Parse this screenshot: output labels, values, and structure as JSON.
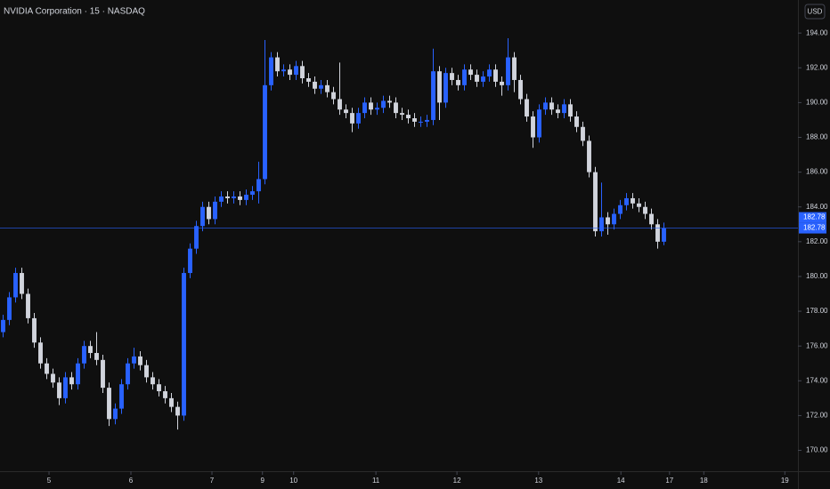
{
  "chart_data": {
    "type": "candlestick",
    "title": "NVIDIA Corporation · 15 · NASDAQ",
    "currency": "USD",
    "up_color": "#2962ff",
    "down_color": "#d1d4dc",
    "open": [
      176.8,
      177.5,
      178.8,
      180.2,
      179.0,
      177.6,
      176.2,
      175.0,
      174.4,
      173.9,
      173.0,
      174.2,
      173.8,
      175.0,
      176.0,
      175.6,
      175.2,
      173.6,
      171.8,
      172.4,
      173.8,
      175.0,
      175.4,
      174.9,
      174.2,
      173.8,
      173.4,
      173.0,
      172.5,
      172.0,
      180.2,
      181.6,
      182.9,
      184.0,
      183.3,
      184.3,
      184.6,
      184.5,
      184.6,
      184.4,
      184.7,
      184.9,
      185.6,
      191.0,
      192.6,
      191.8,
      191.9,
      191.6,
      192.1,
      191.4,
      191.2,
      190.8,
      191.0,
      190.6,
      190.2,
      189.6,
      189.4,
      188.8,
      189.4,
      190.0,
      189.6,
      189.7,
      190.1,
      190.0,
      189.4,
      189.3,
      189.1,
      188.9,
      188.9,
      189.0,
      191.8,
      190.0,
      191.7,
      191.3,
      191.0,
      191.9,
      191.6,
      191.2,
      191.5,
      191.9,
      191.2,
      191.0,
      192.6,
      191.3,
      190.2,
      189.2,
      188.0,
      189.6,
      190.0,
      189.6,
      189.4,
      189.9,
      189.2,
      188.6,
      187.8,
      186.0,
      182.6,
      183.4,
      183.0,
      183.6,
      184.1,
      184.5,
      184.2,
      184.0,
      183.6,
      183.0,
      182.0
    ],
    "high": [
      177.8,
      179.1,
      180.5,
      180.5,
      179.3,
      177.9,
      176.5,
      175.3,
      174.7,
      174.2,
      174.5,
      174.5,
      175.3,
      176.3,
      176.3,
      176.8,
      175.5,
      173.9,
      172.7,
      174.1,
      175.3,
      175.9,
      175.7,
      175.2,
      174.5,
      174.1,
      173.7,
      173.3,
      172.8,
      180.5,
      181.9,
      183.2,
      184.3,
      184.3,
      184.6,
      184.9,
      184.9,
      184.9,
      184.9,
      185.0,
      185.2,
      186.6,
      193.6,
      192.9,
      192.9,
      192.2,
      192.2,
      192.4,
      192.4,
      191.7,
      191.5,
      191.3,
      191.3,
      190.9,
      192.3,
      189.9,
      189.7,
      189.7,
      190.3,
      190.3,
      190.0,
      190.4,
      190.4,
      190.3,
      189.7,
      189.6,
      189.4,
      189.2,
      189.3,
      193.1,
      192.1,
      192.0,
      192.0,
      191.6,
      192.2,
      192.2,
      191.9,
      191.8,
      192.2,
      192.2,
      191.5,
      193.7,
      192.9,
      191.6,
      190.5,
      189.5,
      189.9,
      190.3,
      190.3,
      189.9,
      190.2,
      190.2,
      189.5,
      188.9,
      188.1,
      186.3,
      185.4,
      183.7,
      183.9,
      184.4,
      184.8,
      184.8,
      184.5,
      184.3,
      183.9,
      183.3,
      183.1
    ],
    "low": [
      176.5,
      177.2,
      178.5,
      178.7,
      177.3,
      175.9,
      174.7,
      174.1,
      173.6,
      172.6,
      172.7,
      173.5,
      173.5,
      174.7,
      175.3,
      174.9,
      173.3,
      171.4,
      171.5,
      172.1,
      173.5,
      174.7,
      174.6,
      173.9,
      173.5,
      173.1,
      172.7,
      172.2,
      171.2,
      171.7,
      179.9,
      181.3,
      182.6,
      183.0,
      183.0,
      184.0,
      184.2,
      184.2,
      184.1,
      184.1,
      184.4,
      184.2,
      185.3,
      190.7,
      191.5,
      191.5,
      191.3,
      191.3,
      191.1,
      190.9,
      190.5,
      190.5,
      190.3,
      189.9,
      189.3,
      189.1,
      188.3,
      188.5,
      189.1,
      189.3,
      189.3,
      189.4,
      189.7,
      189.1,
      189.0,
      188.8,
      188.6,
      188.6,
      188.6,
      188.7,
      189.0,
      189.7,
      191.0,
      190.7,
      190.7,
      191.3,
      190.9,
      190.9,
      191.2,
      190.9,
      190.4,
      190.7,
      190.6,
      189.9,
      188.9,
      187.4,
      187.7,
      189.3,
      189.3,
      189.1,
      189.1,
      188.9,
      188.3,
      187.5,
      185.7,
      182.3,
      182.3,
      182.4,
      182.7,
      183.3,
      183.8,
      183.9,
      183.7,
      183.3,
      182.7,
      181.6,
      181.8
    ],
    "close": [
      177.5,
      178.8,
      180.2,
      179.0,
      177.6,
      176.2,
      175.0,
      174.4,
      173.9,
      173.0,
      174.2,
      173.8,
      175.0,
      176.0,
      175.6,
      175.2,
      173.6,
      171.8,
      172.4,
      173.8,
      175.0,
      175.4,
      174.9,
      174.2,
      173.8,
      173.4,
      173.0,
      172.5,
      172.0,
      180.2,
      181.6,
      182.9,
      184.0,
      183.3,
      184.3,
      184.6,
      184.5,
      184.6,
      184.4,
      184.7,
      184.9,
      185.6,
      191.0,
      192.6,
      191.8,
      191.9,
      191.6,
      192.1,
      191.4,
      191.2,
      190.8,
      191.0,
      190.6,
      190.2,
      189.6,
      189.4,
      188.8,
      189.4,
      190.0,
      189.6,
      189.7,
      190.1,
      190.0,
      189.4,
      189.3,
      189.1,
      188.9,
      188.9,
      189.0,
      191.8,
      190.0,
      191.7,
      191.3,
      191.0,
      191.9,
      191.6,
      191.2,
      191.5,
      191.9,
      191.2,
      191.0,
      192.6,
      191.3,
      190.2,
      189.2,
      188.0,
      189.6,
      190.0,
      189.6,
      189.4,
      189.9,
      189.2,
      188.6,
      187.8,
      186.0,
      182.6,
      183.4,
      183.0,
      183.6,
      184.1,
      184.5,
      184.2,
      184.0,
      183.6,
      183.0,
      182.0,
      182.78
    ],
    "last_price": 182.78,
    "ylim": [
      168.8,
      195.9
    ],
    "yticks": [
      {
        "value": 170,
        "label": "170.00"
      },
      {
        "value": 172,
        "label": "172.00"
      },
      {
        "value": 174,
        "label": "174.00"
      },
      {
        "value": 176,
        "label": "176.00"
      },
      {
        "value": 178,
        "label": "178.00"
      },
      {
        "value": 180,
        "label": "180.00"
      },
      {
        "value": 182,
        "label": "182.00"
      },
      {
        "value": 184,
        "label": "184.00"
      },
      {
        "value": 186,
        "label": "186.00"
      },
      {
        "value": 188,
        "label": "188.00"
      },
      {
        "value": 190,
        "label": "190.00"
      },
      {
        "value": 192,
        "label": "192.00"
      },
      {
        "value": 194,
        "label": "194.00"
      }
    ],
    "xlim": [
      0,
      128
    ],
    "xticks": [
      {
        "value": 7.86,
        "label": "5"
      },
      {
        "value": 21,
        "label": "6"
      },
      {
        "value": 34,
        "label": "7"
      },
      {
        "value": 42.1,
        "label": "9"
      },
      {
        "value": 47.1,
        "label": "10"
      },
      {
        "value": 60.3,
        "label": "11"
      },
      {
        "value": 73.3,
        "label": "12"
      },
      {
        "value": 86.4,
        "label": "13"
      },
      {
        "value": 99.6,
        "label": "14"
      },
      {
        "value": 107.4,
        "label": "17"
      },
      {
        "value": 112.9,
        "label": "18"
      },
      {
        "value": 125.9,
        "label": "19"
      }
    ]
  }
}
